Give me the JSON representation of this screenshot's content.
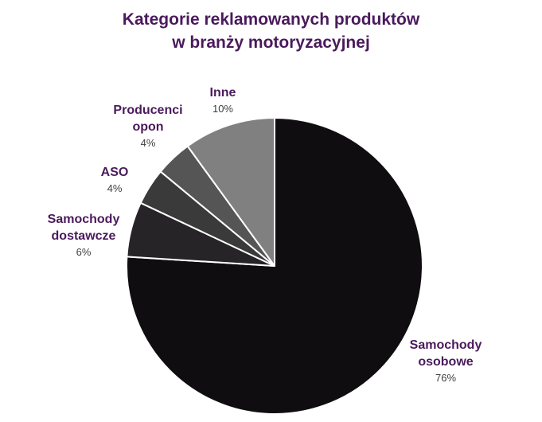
{
  "chart_data": {
    "type": "pie",
    "title_lines": [
      "Kategorie reklamowanych produktów",
      "w branży motoryzacyjnej"
    ],
    "slices": [
      {
        "label_lines": [
          "Samochody",
          "osobowe"
        ],
        "value": 76,
        "value_label": "76%",
        "color": "#0f0d0f"
      },
      {
        "label_lines": [
          "Samochody",
          "dostawcze"
        ],
        "value": 6,
        "value_label": "6%",
        "color": "#262426"
      },
      {
        "label_lines": [
          "ASO"
        ],
        "value": 4,
        "value_label": "4%",
        "color": "#3a3a3a"
      },
      {
        "label_lines": [
          "Producenci",
          "opon"
        ],
        "value": 4,
        "value_label": "4%",
        "color": "#555555"
      },
      {
        "label_lines": [
          "Inne"
        ],
        "value": 10,
        "value_label": "10%",
        "color": "#808080"
      }
    ],
    "legend": "none"
  }
}
